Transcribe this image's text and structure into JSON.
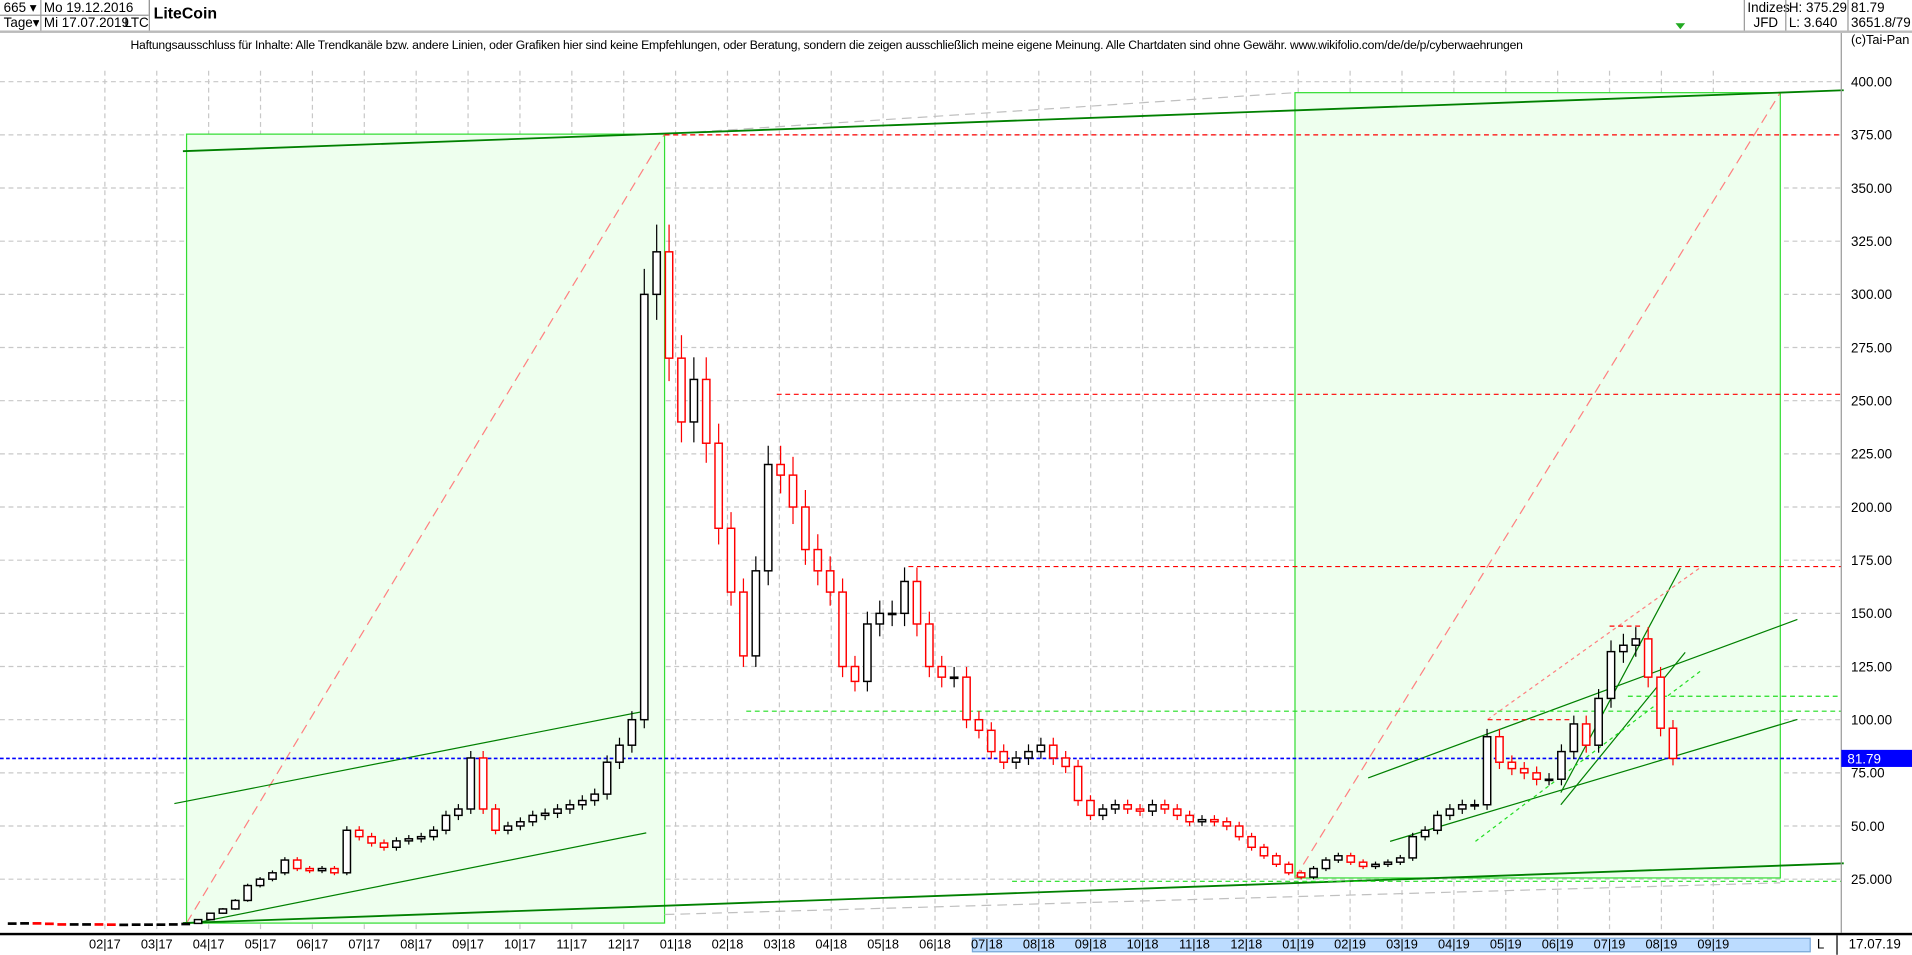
{
  "header": {
    "bars_count": "665",
    "period": "Tage",
    "start_date": "Mo 19.12.2016",
    "end_date": "Mi 17.07.2019",
    "symbol": "LTC",
    "title": "LiteCoin",
    "market": "Indizes",
    "exchange": "JFD",
    "high": "H: 375.29",
    "low": "L: 3.640",
    "last": "81.79",
    "extra": "3651.8/79",
    "copyright": "(c)Tai-Pan"
  },
  "disclaimer": "Haftungsausschluss für Inhalte: Alle Trendkanäle bzw. andere Linien, oder Grafiken hier sind keine Empfehlungen, oder Beratung, sondern die zeigen ausschließlich meine eigene Meinung. Alle Chartdaten sind ohne Gewähr.  www.wikifolio.com/de/de/p/cyberwaehrungen",
  "footer": {
    "l_label": "L",
    "last_date": "17.07.19"
  },
  "colors": {
    "up": "#000000",
    "down": "#ff0000",
    "box_fill": "#eeffee",
    "box_border": "#33dd33",
    "trend": "#008000",
    "last_price": "#0000ff",
    "resistance": "#ff0000",
    "support": "#22dd22"
  },
  "chart_data": {
    "type": "candlestick",
    "title": "LiteCoin",
    "y_axis_side": "right",
    "ylim": [
      18,
      412
    ],
    "y_ticks": [
      "400.00",
      "375.00",
      "350.00",
      "325.00",
      "300.00",
      "275.00",
      "250.00",
      "225.00",
      "200.00",
      "175.00",
      "150.00",
      "125.00",
      "100.00",
      "75.00",
      "50.00",
      "25.000"
    ],
    "x_ticks": [
      "02|17",
      "03|17",
      "04|17",
      "05|17",
      "06|17",
      "07|17",
      "08|17",
      "09|17",
      "10|17",
      "11|17",
      "12|17",
      "01|18",
      "02|18",
      "03|18",
      "04|18",
      "05|18",
      "06|18",
      "07|18",
      "08|18",
      "09|18",
      "10|18",
      "11|18",
      "12|18",
      "01|19",
      "02|19",
      "03|19",
      "04|19",
      "05|19",
      "06|19",
      "07|19",
      "08|19",
      "09|19"
    ],
    "grid": true,
    "series_start": "2016-12-19",
    "series_interval": "weekly (approximation of daily candles)",
    "closes": [
      4.4,
      4.5,
      4.3,
      4.0,
      3.9,
      4.0,
      4.0,
      3.9,
      3.8,
      3.8,
      3.9,
      3.9,
      3.9,
      4.0,
      4.2,
      6,
      9,
      11,
      15,
      22,
      25,
      28,
      34,
      30,
      29,
      30,
      28,
      48,
      45,
      42,
      40,
      43,
      44,
      45,
      48,
      55,
      58,
      82,
      58,
      48,
      50,
      52,
      55,
      56,
      58,
      60,
      62,
      65,
      80,
      88,
      100,
      300,
      320,
      270,
      240,
      260,
      230,
      190,
      160,
      130,
      170,
      220,
      215,
      200,
      180,
      170,
      160,
      125,
      118,
      145,
      150,
      150,
      165,
      145,
      125,
      120,
      120,
      100,
      95,
      85,
      80,
      82,
      85,
      88,
      82,
      78,
      62,
      55,
      58,
      60,
      58,
      57,
      60,
      58,
      55,
      52,
      53,
      52,
      50,
      45,
      40,
      36,
      32,
      28,
      26,
      30,
      34,
      36,
      33,
      31,
      32,
      33,
      35,
      45,
      48,
      55,
      58,
      60,
      60,
      92,
      80,
      77,
      75,
      72,
      72,
      85,
      98,
      88,
      110,
      132,
      135,
      138,
      120,
      96,
      81.79
    ],
    "last_price": 81.79,
    "horizontal_levels": {
      "resistance": [
        375,
        253,
        172
      ],
      "support": [
        104,
        111,
        24
      ]
    }
  }
}
